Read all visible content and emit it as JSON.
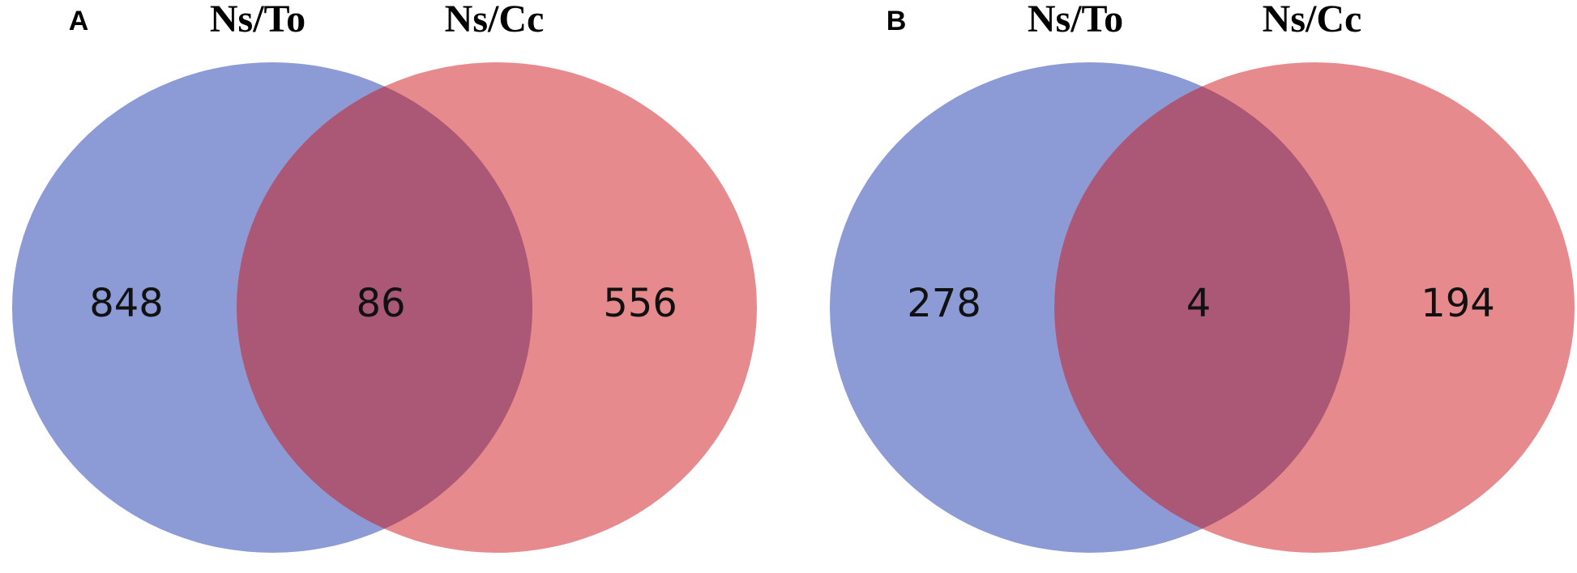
{
  "chart_data": [
    {
      "type": "venn",
      "panel": "A",
      "sets": [
        {
          "name": "Ns/To",
          "color": "#8c9bd6"
        },
        {
          "name": "Ns/Cc",
          "color": "#e78a8d"
        }
      ],
      "overlap_color": "#ab5776",
      "values": [
        848,
        86,
        556
      ]
    },
    {
      "type": "venn",
      "panel": "B",
      "sets": [
        {
          "name": "Ns/To",
          "color": "#8c9bd6"
        },
        {
          "name": "Ns/Cc",
          "color": "#e78a8d"
        }
      ],
      "overlap_color": "#ab5776",
      "values": [
        278,
        4,
        194
      ]
    }
  ]
}
